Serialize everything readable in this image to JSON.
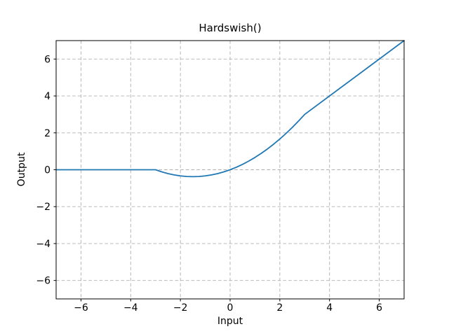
{
  "chart_data": {
    "type": "line",
    "title": "Hardswish()",
    "xlabel": "Input",
    "ylabel": "Output",
    "xlim": [
      -7,
      7
    ],
    "ylim": [
      -7,
      7
    ],
    "xticks": [
      -6,
      -4,
      -2,
      0,
      2,
      4,
      6
    ],
    "yticks": [
      -6,
      -4,
      -2,
      0,
      2,
      4,
      6
    ],
    "xtick_labels": [
      "−6",
      "−4",
      "−2",
      "0",
      "2",
      "4",
      "6"
    ],
    "ytick_labels": [
      "−6",
      "−4",
      "−2",
      "0",
      "2",
      "4",
      "6"
    ],
    "grid": true,
    "grid_style": "dashed",
    "grid_color": "#b0b0b0",
    "spine_color": "#000000",
    "line_color": "#1f77b4",
    "legend": "none",
    "series": [
      {
        "name": "Hardswish",
        "x": [
          -7,
          -3,
          -2.75,
          -2.5,
          -2.25,
          -2,
          -1.75,
          -1.5,
          -1.25,
          -1,
          -0.75,
          -0.5,
          -0.25,
          0,
          0.25,
          0.5,
          0.75,
          1,
          1.25,
          1.5,
          1.75,
          2,
          2.25,
          2.5,
          2.75,
          3,
          7
        ],
        "y": [
          0,
          0,
          -0.1146,
          -0.2083,
          -0.2813,
          -0.3333,
          -0.3646,
          -0.375,
          -0.3646,
          -0.3333,
          -0.2813,
          -0.2083,
          -0.1146,
          0,
          0.1354,
          0.2917,
          0.4688,
          0.6667,
          0.8854,
          1.125,
          1.3854,
          1.6667,
          1.9688,
          2.2917,
          2.6354,
          3,
          7
        ]
      }
    ]
  }
}
